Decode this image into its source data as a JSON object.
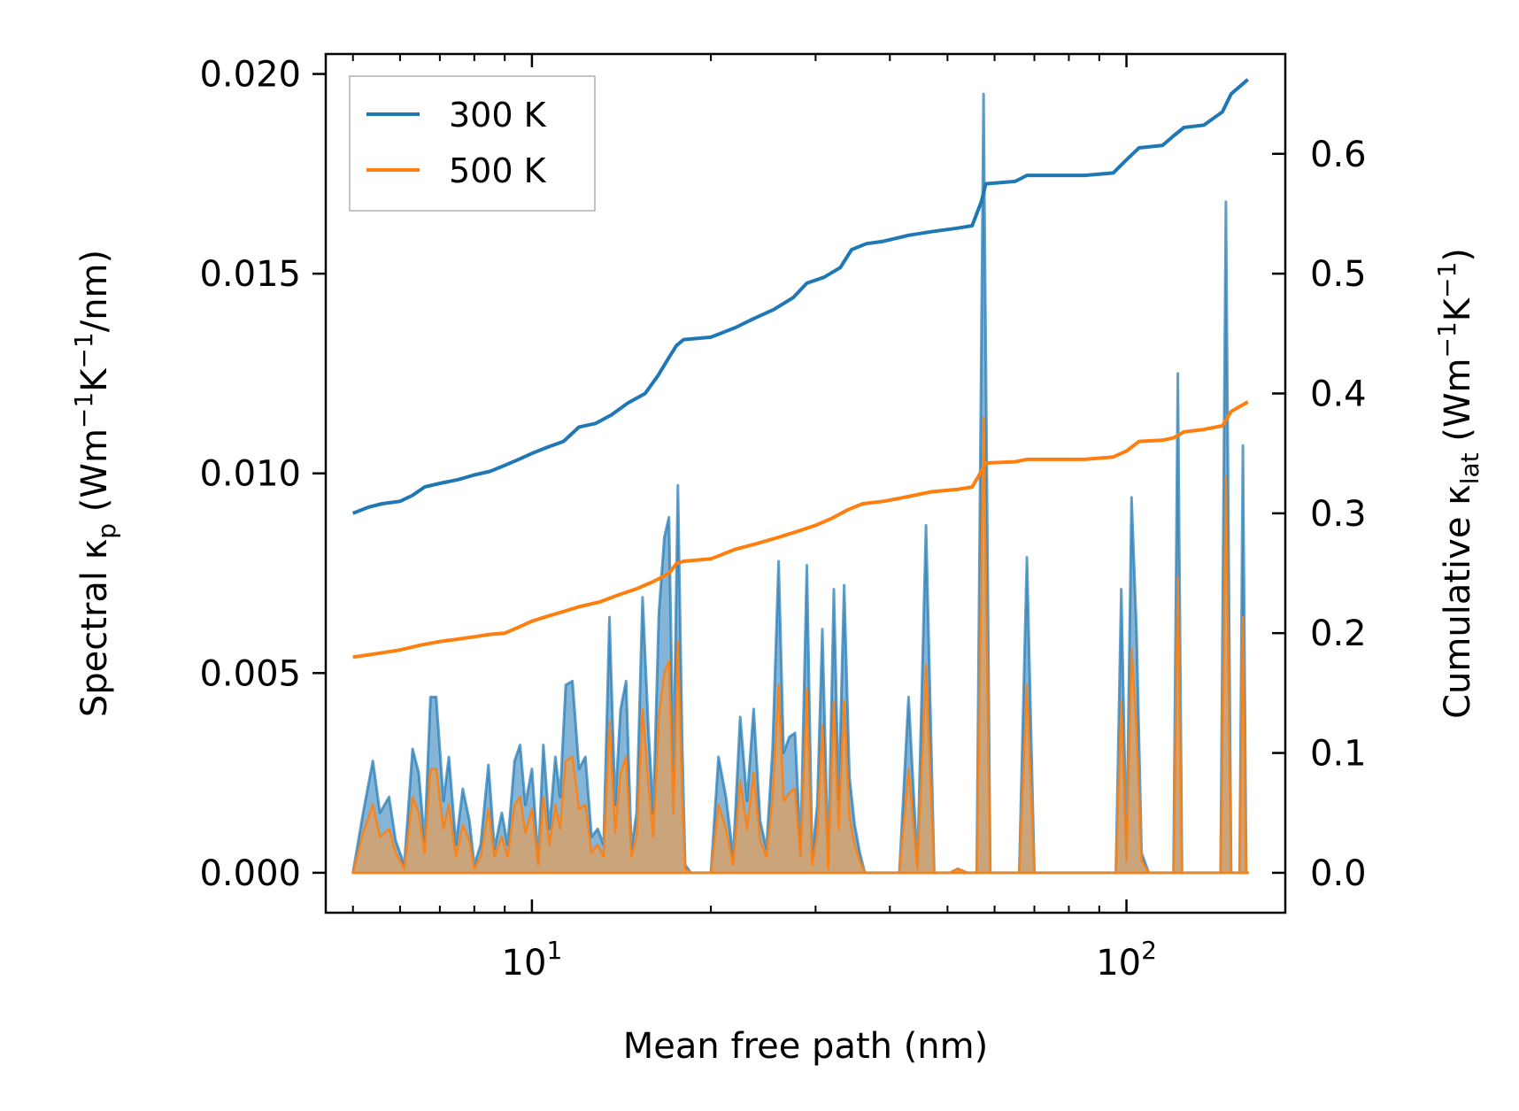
{
  "chart_data": {
    "type": "line",
    "xscale": "log",
    "xlim": [
      4.5,
      185
    ],
    "ylim_left": [
      -0.001,
      0.0205
    ],
    "ylim_right": [
      -0.0333,
      0.6833
    ],
    "xlabel": "Mean free path (nm)",
    "ylabel_left": "Spectral κ_p (Wm^-1K^-1/nm)",
    "ylabel_right": "Cumulative κ_lat (Wm^-1K^-1)",
    "xticks": [
      10,
      100
    ],
    "xtick_labels": [
      {
        "base": "10",
        "exp": "1"
      },
      {
        "base": "10",
        "exp": "2"
      }
    ],
    "yticks_left": [
      0.0,
      0.005,
      0.01,
      0.015,
      0.02
    ],
    "ytick_labels_left": [
      "0.000",
      "0.005",
      "0.010",
      "0.015",
      "0.020"
    ],
    "yticks_right": [
      0.0,
      0.1,
      0.2,
      0.3,
      0.4,
      0.5,
      0.6
    ],
    "ytick_labels_right": [
      "0.0",
      "0.1",
      "0.2",
      "0.3",
      "0.4",
      "0.5",
      "0.6"
    ],
    "legend": {
      "location": "upper-left",
      "entries": [
        "300 K",
        "500 K"
      ]
    },
    "colors": {
      "300K": "#1f77b4",
      "500K": "#ff7f0e",
      "fill300": "#1f77b4",
      "fill500": "#d6a26b"
    },
    "series": [
      {
        "name": "300 K",
        "kind": "cumulative",
        "axis": "right",
        "x": [
          5.0,
          5.3,
          5.6,
          6.0,
          6.3,
          6.6,
          7.0,
          7.5,
          8.0,
          8.5,
          9.0,
          9.5,
          10.0,
          10.6,
          11.3,
          12.0,
          12.8,
          13.6,
          14.5,
          15.5,
          16.3,
          17.0,
          17.5,
          18.0,
          20.0,
          22.0,
          23.5,
          25.5,
          27.5,
          29.0,
          31.0,
          33.0,
          34.5,
          36.5,
          39.0,
          43.0,
          47.0,
          52.0,
          55.0,
          57.0,
          58.0,
          65.0,
          68.0,
          75.0,
          85.0,
          95.0,
          100.0,
          105.0,
          115.0,
          120.0,
          125.0,
          135.0,
          145.0,
          150.0,
          160.0
        ],
        "values": [
          0.3,
          0.305,
          0.308,
          0.31,
          0.315,
          0.322,
          0.325,
          0.328,
          0.332,
          0.335,
          0.34,
          0.345,
          0.35,
          0.355,
          0.36,
          0.372,
          0.375,
          0.382,
          0.392,
          0.4,
          0.415,
          0.43,
          0.44,
          0.445,
          0.447,
          0.455,
          0.462,
          0.47,
          0.48,
          0.492,
          0.497,
          0.505,
          0.52,
          0.525,
          0.527,
          0.532,
          0.535,
          0.538,
          0.54,
          0.56,
          0.575,
          0.577,
          0.582,
          0.582,
          0.582,
          0.584,
          0.595,
          0.605,
          0.607,
          0.615,
          0.622,
          0.624,
          0.635,
          0.65,
          0.662
        ]
      },
      {
        "name": "500 K",
        "kind": "cumulative",
        "axis": "right",
        "x": [
          5.0,
          5.5,
          6.0,
          6.5,
          7.0,
          7.5,
          8.0,
          8.5,
          9.0,
          9.5,
          10.0,
          10.6,
          11.3,
          12.0,
          13.0,
          14.0,
          15.0,
          16.0,
          17.0,
          17.5,
          18.0,
          20.0,
          22.0,
          24.0,
          26.0,
          28.0,
          30.0,
          32.0,
          34.0,
          36.0,
          39.0,
          43.0,
          47.0,
          52.0,
          55.0,
          57.0,
          58.0,
          65.0,
          68.0,
          75.0,
          85.0,
          95.0,
          100.0,
          105.0,
          115.0,
          120.0,
          125.0,
          135.0,
          145.0,
          150.0,
          160.0
        ],
        "values": [
          0.18,
          0.183,
          0.186,
          0.19,
          0.193,
          0.195,
          0.197,
          0.199,
          0.2,
          0.205,
          0.21,
          0.214,
          0.218,
          0.222,
          0.226,
          0.232,
          0.237,
          0.243,
          0.25,
          0.258,
          0.26,
          0.262,
          0.27,
          0.275,
          0.28,
          0.285,
          0.29,
          0.296,
          0.303,
          0.308,
          0.31,
          0.314,
          0.318,
          0.32,
          0.322,
          0.335,
          0.342,
          0.343,
          0.345,
          0.345,
          0.345,
          0.347,
          0.352,
          0.36,
          0.361,
          0.363,
          0.368,
          0.37,
          0.373,
          0.385,
          0.393
        ]
      },
      {
        "name": "300 K spectral",
        "kind": "spectral",
        "axis": "left",
        "x": [
          5.0,
          5.2,
          5.4,
          5.55,
          5.75,
          5.9,
          6.1,
          6.3,
          6.45,
          6.6,
          6.75,
          6.9,
          7.1,
          7.25,
          7.45,
          7.65,
          7.85,
          8.0,
          8.2,
          8.45,
          8.65,
          8.9,
          9.1,
          9.35,
          9.55,
          9.75,
          10.0,
          10.25,
          10.45,
          10.7,
          10.95,
          11.15,
          11.4,
          11.7,
          12.0,
          12.3,
          12.6,
          12.9,
          13.2,
          13.5,
          13.8,
          14.1,
          14.4,
          14.7,
          15.0,
          15.35,
          15.7,
          16.0,
          16.35,
          16.7,
          17.0,
          17.3,
          17.6,
          17.9,
          18.1,
          18.5,
          19.0,
          19.5,
          20.0,
          20.6,
          21.2,
          21.8,
          22.4,
          23.0,
          23.6,
          24.2,
          24.8,
          25.4,
          26.0,
          26.5,
          27.1,
          27.7,
          28.3,
          29.0,
          29.6,
          30.2,
          30.8,
          31.5,
          32.2,
          32.8,
          33.5,
          34.2,
          34.9,
          35.6,
          36.3,
          37.0,
          38.5,
          40.0,
          41.5,
          43.0,
          44.5,
          46.0,
          47.5,
          49.0,
          50.5,
          52.0,
          54.0,
          56.0,
          57.5,
          59.0,
          60.5,
          62.0,
          64.0,
          66.0,
          68.0,
          70.0,
          72.0,
          85.0,
          96.0,
          98.0,
          100.0,
          102.0,
          104.0,
          106.0,
          109.0,
          112.0,
          115.0,
          118.0,
          120.0,
          122.0,
          124.0,
          126.0,
          130.0,
          134.0,
          138.0,
          141.0,
          144.0,
          147.0,
          150.0,
          153.0,
          155.0,
          157.0,
          159.0,
          160.0
        ],
        "values": [
          0.0,
          0.0015,
          0.0028,
          0.0015,
          0.0019,
          0.0008,
          0.0002,
          0.0031,
          0.0025,
          0.0008,
          0.0044,
          0.0044,
          0.0018,
          0.0029,
          0.0007,
          0.0021,
          0.0013,
          0.0002,
          0.0007,
          0.0027,
          0.0006,
          0.0015,
          0.0007,
          0.0028,
          0.0032,
          0.0017,
          0.0026,
          0.0003,
          0.0032,
          0.0011,
          0.0029,
          0.0019,
          0.0047,
          0.0048,
          0.0026,
          0.0029,
          0.0009,
          0.0011,
          0.0007,
          0.0064,
          0.0017,
          0.0041,
          0.0048,
          0.0006,
          0.0015,
          0.0069,
          0.0036,
          0.0015,
          0.0065,
          0.0084,
          0.0089,
          0.0025,
          0.0097,
          0.0032,
          0.0002,
          0.0,
          0.0,
          0.0,
          0.0,
          0.0029,
          0.0019,
          0.0004,
          0.0039,
          0.0018,
          0.0041,
          0.0013,
          0.0006,
          0.0031,
          0.0078,
          0.003,
          0.0034,
          0.0035,
          0.0006,
          0.0077,
          0.0004,
          0.0017,
          0.0061,
          0.0002,
          0.0071,
          0.0018,
          0.0072,
          0.0024,
          0.0012,
          0.0005,
          0.0,
          0.0,
          0.0,
          0.0,
          0.0,
          0.0044,
          0.0002,
          0.0087,
          0.0,
          0.0,
          0.0,
          0.0001,
          0.0,
          0.0,
          0.0195,
          0.0,
          0.0,
          0.0,
          0.0,
          0.0,
          0.0079,
          0.0,
          0.0,
          0.0,
          0.0,
          0.0071,
          0.0005,
          0.0094,
          0.006,
          0.0005,
          0.0,
          0.0,
          0.0,
          0.0,
          0.0,
          0.0125,
          0.0,
          0.0,
          0.0,
          0.0,
          0.0,
          0.0,
          0.0,
          0.0168,
          0.0,
          0.0,
          0.0,
          0.0107,
          0.0,
          0.0
        ]
      },
      {
        "name": "500 K spectral",
        "kind": "spectral",
        "axis": "left",
        "x": [
          5.0,
          5.2,
          5.4,
          5.55,
          5.75,
          5.9,
          6.1,
          6.3,
          6.45,
          6.6,
          6.75,
          6.9,
          7.1,
          7.25,
          7.45,
          7.65,
          7.85,
          8.0,
          8.2,
          8.45,
          8.65,
          8.9,
          9.1,
          9.35,
          9.55,
          9.75,
          10.0,
          10.25,
          10.45,
          10.7,
          10.95,
          11.15,
          11.4,
          11.7,
          12.0,
          12.3,
          12.6,
          12.9,
          13.2,
          13.5,
          13.8,
          14.1,
          14.4,
          14.7,
          15.0,
          15.35,
          15.7,
          16.0,
          16.35,
          16.7,
          17.0,
          17.3,
          17.6,
          17.9,
          18.1,
          18.5,
          19.0,
          19.5,
          20.0,
          20.6,
          21.2,
          21.8,
          22.4,
          23.0,
          23.6,
          24.2,
          24.8,
          25.4,
          26.0,
          26.5,
          27.1,
          27.7,
          28.3,
          29.0,
          29.6,
          30.2,
          30.8,
          31.5,
          32.2,
          32.8,
          33.5,
          34.2,
          34.9,
          35.6,
          36.3,
          37.0,
          38.5,
          40.0,
          41.5,
          43.0,
          44.5,
          46.0,
          47.5,
          49.0,
          50.5,
          52.0,
          54.0,
          56.0,
          57.5,
          59.0,
          60.5,
          62.0,
          64.0,
          66.0,
          68.0,
          70.0,
          72.0,
          85.0,
          96.0,
          98.0,
          100.0,
          102.0,
          104.0,
          106.0,
          109.0,
          112.0,
          115.0,
          118.0,
          120.0,
          122.0,
          124.0,
          126.0,
          130.0,
          134.0,
          138.0,
          141.0,
          144.0,
          147.0,
          150.0,
          153.0,
          155.0,
          157.0,
          159.0,
          160.0
        ],
        "values": [
          0.0,
          0.001,
          0.0017,
          0.0009,
          0.0011,
          0.0005,
          0.0001,
          0.0019,
          0.0015,
          0.0005,
          0.0026,
          0.0026,
          0.0011,
          0.0017,
          0.0004,
          0.0012,
          0.0008,
          0.0001,
          0.0004,
          0.0016,
          0.0004,
          0.0009,
          0.0004,
          0.0017,
          0.0019,
          0.001,
          0.0016,
          0.0002,
          0.0019,
          0.0007,
          0.0017,
          0.0011,
          0.0028,
          0.0029,
          0.0016,
          0.0017,
          0.0005,
          0.0007,
          0.0004,
          0.0038,
          0.001,
          0.0025,
          0.0029,
          0.0004,
          0.0009,
          0.0041,
          0.0022,
          0.0009,
          0.0039,
          0.005,
          0.0053,
          0.0015,
          0.0058,
          0.0019,
          0.0001,
          0.0,
          0.0,
          0.0,
          0.0,
          0.0017,
          0.0011,
          0.0002,
          0.0023,
          0.0011,
          0.0025,
          0.0008,
          0.0004,
          0.0019,
          0.0047,
          0.0018,
          0.002,
          0.0021,
          0.0004,
          0.0046,
          0.0002,
          0.001,
          0.0037,
          0.0001,
          0.0043,
          0.0011,
          0.0043,
          0.0014,
          0.0007,
          0.0003,
          0.0,
          0.0,
          0.0,
          0.0,
          0.0,
          0.0026,
          0.0001,
          0.0052,
          0.0,
          0.0,
          0.0,
          0.0001,
          0.0,
          0.0,
          0.0114,
          0.0,
          0.0,
          0.0,
          0.0,
          0.0,
          0.0047,
          0.0,
          0.0,
          0.0,
          0.0,
          0.0043,
          0.0003,
          0.0056,
          0.0036,
          0.0003,
          0.0,
          0.0,
          0.0,
          0.0,
          0.0,
          0.0074,
          0.0,
          0.0,
          0.0,
          0.0,
          0.0,
          0.0,
          0.0,
          0.0099,
          0.0,
          0.0,
          0.0,
          0.0064,
          0.0,
          0.0
        ]
      }
    ]
  }
}
